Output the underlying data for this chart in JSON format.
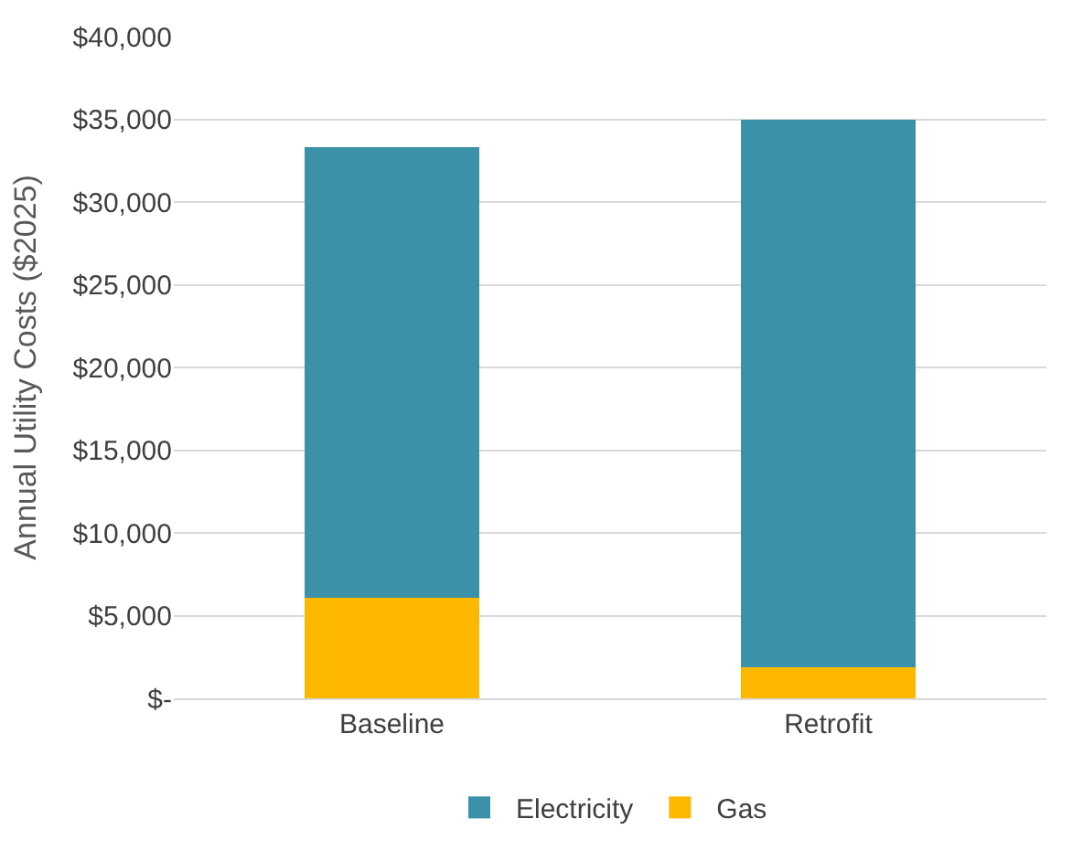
{
  "chart_data": {
    "type": "bar",
    "stacked": true,
    "ylabel": "Annual Utility Costs ($2025)",
    "categories": [
      "Baseline",
      "Retrofit"
    ],
    "series": [
      {
        "name": "Gas",
        "color": "#ffb800",
        "values": [
          6100,
          1900
        ]
      },
      {
        "name": "Electricity",
        "color": "#3a91a8",
        "values": [
          27200,
          33100
        ]
      }
    ],
    "ylim": [
      0,
      40000
    ],
    "yticks": [
      {
        "value": 0,
        "label": "$-"
      },
      {
        "value": 5000,
        "label": "$5,000"
      },
      {
        "value": 10000,
        "label": "$10,000"
      },
      {
        "value": 15000,
        "label": "$15,000"
      },
      {
        "value": 20000,
        "label": "$20,000"
      },
      {
        "value": 25000,
        "label": "$25,000"
      },
      {
        "value": 30000,
        "label": "$30,000"
      },
      {
        "value": 35000,
        "label": "$35,000"
      },
      {
        "value": 40000,
        "label": "$40,000"
      }
    ],
    "grid": "y",
    "legend": "bottom"
  }
}
